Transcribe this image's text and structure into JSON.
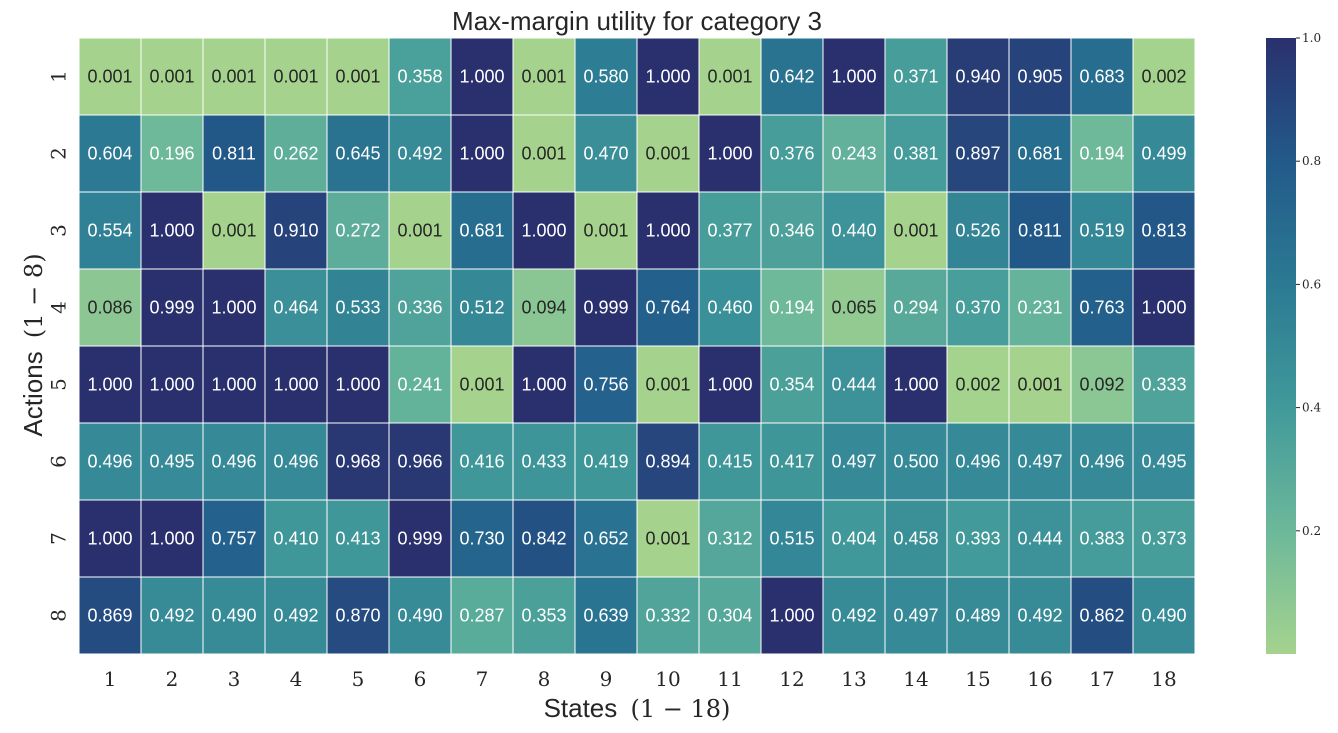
{
  "chart_data": {
    "type": "heatmap",
    "title": "Max-margin utility for category 3",
    "xlabel": "States",
    "xlabel_math": "(1 − 18)",
    "ylabel": "Actions",
    "ylabel_math": "(1 − 8)",
    "x_categories": [
      "1",
      "2",
      "3",
      "4",
      "5",
      "6",
      "7",
      "8",
      "9",
      "10",
      "11",
      "12",
      "13",
      "14",
      "15",
      "16",
      "17",
      "18"
    ],
    "y_categories": [
      "1",
      "2",
      "3",
      "4",
      "5",
      "6",
      "7",
      "8"
    ],
    "values": [
      [
        0.001,
        0.001,
        0.001,
        0.001,
        0.001,
        0.358,
        1.0,
        0.001,
        0.58,
        1.0,
        0.001,
        0.642,
        1.0,
        0.371,
        0.94,
        0.905,
        0.683,
        0.002
      ],
      [
        0.604,
        0.196,
        0.811,
        0.262,
        0.645,
        0.492,
        1.0,
        0.001,
        0.47,
        0.001,
        1.0,
        0.376,
        0.243,
        0.381,
        0.897,
        0.681,
        0.194,
        0.499
      ],
      [
        0.554,
        1.0,
        0.001,
        0.91,
        0.272,
        0.001,
        0.681,
        1.0,
        0.001,
        1.0,
        0.377,
        0.346,
        0.44,
        0.001,
        0.526,
        0.811,
        0.519,
        0.813
      ],
      [
        0.086,
        0.999,
        1.0,
        0.464,
        0.533,
        0.336,
        0.512,
        0.094,
        0.999,
        0.764,
        0.46,
        0.194,
        0.065,
        0.294,
        0.37,
        0.231,
        0.763,
        1.0
      ],
      [
        1.0,
        1.0,
        1.0,
        1.0,
        1.0,
        0.241,
        0.001,
        1.0,
        0.756,
        0.001,
        1.0,
        0.354,
        0.444,
        1.0,
        0.002,
        0.001,
        0.092,
        0.333
      ],
      [
        0.496,
        0.495,
        0.496,
        0.496,
        0.968,
        0.966,
        0.416,
        0.433,
        0.419,
        0.894,
        0.415,
        0.417,
        0.497,
        0.5,
        0.496,
        0.497,
        0.496,
        0.495
      ],
      [
        1.0,
        1.0,
        0.757,
        0.41,
        0.413,
        0.999,
        0.73,
        0.842,
        0.652,
        0.001,
        0.312,
        0.515,
        0.404,
        0.458,
        0.393,
        0.444,
        0.383,
        0.373
      ],
      [
        0.869,
        0.492,
        0.49,
        0.492,
        0.87,
        0.49,
        0.287,
        0.353,
        0.639,
        0.332,
        0.304,
        1.0,
        0.492,
        0.497,
        0.489,
        0.492,
        0.862,
        0.49
      ]
    ],
    "value_format": "3 decimals",
    "colormap": "crest",
    "vmin": 0.0,
    "vmax": 1.0,
    "colorbar_ticks": [
      "0.2",
      "0.4",
      "0.6",
      "0.8",
      "1.0"
    ]
  }
}
